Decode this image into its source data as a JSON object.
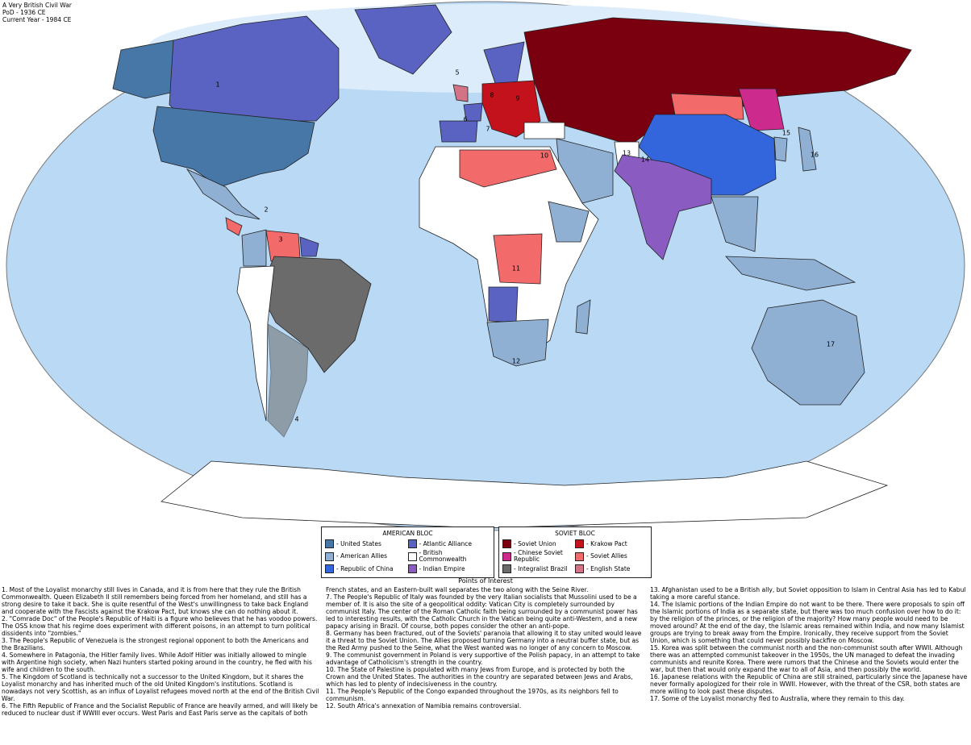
{
  "header": {
    "lines": [
      "A Very British Civil War",
      "PoD - 1936 CE",
      "Current Year - 1984 CE"
    ]
  },
  "map": {
    "labels": [
      "1",
      "2",
      "3",
      "4",
      "5",
      "6",
      "7",
      "8",
      "9",
      "10",
      "11",
      "12",
      "13",
      "14",
      "15",
      "16",
      "17"
    ]
  },
  "legend": {
    "american": {
      "title": "AMERICAN BLOC",
      "items": [
        {
          "label": "- United States",
          "color": "#4677a6"
        },
        {
          "label": "- Atlantic Alliance",
          "color": "#5a62c2"
        },
        {
          "label": "- American Allies",
          "color": "#8fb0d2"
        },
        {
          "label": "- British Commonwealth",
          "color": "#ffffff"
        },
        {
          "label": "- Republic of China",
          "color": "#3366dd"
        },
        {
          "label": "- Indian Empire",
          "color": "#8a5cc2"
        }
      ]
    },
    "soviet": {
      "title": "SOVIET BLOC",
      "items": [
        {
          "label": "- Soviet Union",
          "color": "#7a0010"
        },
        {
          "label": "- Krakow Pact",
          "color": "#c4121c"
        },
        {
          "label": "- Chinese Soviet Republic",
          "color": "#cc2a8c"
        },
        {
          "label": "- Soviet Allies",
          "color": "#f26a6a"
        },
        {
          "label": "- Integralist Brazil",
          "color": "#6b6b6b"
        },
        {
          "label": "- English State",
          "color": "#d27486"
        }
      ]
    }
  },
  "notes": {
    "title": "Points of Interest",
    "items": [
      "1. Most of the Loyalist monarchy still lives in Canada, and it is from here that they rule the British Commonwealth. Queen Elizabeth II still remembers being forced from her homeland, and still has a strong desire to take it back. She is quite resentful of the West's unwillingness to take back England and cooperate with the Fascists against the Krakow Pact, but knows she can do nothing about it.",
      "2. \"Comrade Doc\" of the People's Republic of Haiti is a figure who believes that he has voodoo powers. The OSS know that his regime does experiment with different poisons, in an attempt to turn political dissidents into \"zombies.\"",
      "3. The People's Republic of Venezuela is the strongest regional opponent to both the Americans and the Brazilians.",
      "4. Somewhere in Patagonia, the Hitler family lives. While Adolf Hitler was initially allowed to mingle with Argentine high society, when Nazi hunters started poking around in the country, he fled with his wife and children to the south.",
      "5. The Kingdom of Scotland is technically not a successor to the United Kingdom, but it shares the Loyalist monarchy and has inherited much of the old United Kingdom's institutions. Scotland is nowadays not very Scottish, as an influx of Loyalist refugees moved north at the end of the British Civil War.",
      "6. The Fifth Republic of France and the Socialist Republic of France are heavily armed, and will likely be reduced to nuclear dust if WWIII ever occurs. West Paris and East Paris serve as the capitals of both French states, and an Eastern-built wall separates the two along with the Seine River.",
      "7. The People's Republic of Italy was founded by the very Italian socialists that Mussolini used to be a member of. It is also the site of a geopolitical oddity: Vatican City is completely surrounded by communist Italy. The center of the Roman Catholic faith being surrounded by a communist power has led to interesting results, with the Catholic Church in the Vatican being quite anti-Western, and a new papacy arising in Brazil. Of course, both popes consider the other an anti-pope.",
      "8. Germany has been fractured, out of the Soviets' paranoia that allowing it to stay united would leave it a threat to the Soviet Union. The Allies proposed turning Germany into a neutral buffer state, but as the Red Army pushed to the Seine, what the West wanted was no longer of any concern to Moscow.",
      "9. The communist government in Poland is very supportive of the Polish papacy, in an attempt to take advantage of Catholicism's strength in the country.",
      "10. The State of Palestine is populated with many Jews from Europe, and is protected by both the Crown and the United States. The authorities in the country are separated between Jews and Arabs, which has led to plenty of indecisiveness in the country.",
      "11. The People's Republic of the Congo expanded throughout the 1970s, as its neighbors fell to communism.",
      "12. South Africa's annexation of Namibia remains controversial.",
      "13. Afghanistan used to be a British ally, but Soviet opposition to Islam in Central Asia has led to Kabul taking a more careful stance.",
      "14. The Islamic portions of the Indian Empire do not want to be there. There were proposals to spin off the Islamic portions of India as a separate state, but there was too much confusion over how to do it: by the religion of the princes, or the religion of the majority? How many people would need to be moved around? At the end of the day, the Islamic areas remained within India, and now many Islamist groups are trying to break away from the Empire. Ironically, they receive support from the Soviet Union, which is something that could never possibly backfire on Moscow.",
      "15. Korea was split between the communist north and the non-communist south after WWII. Although there was an attempted communist takeover in the 1950s, the UN managed to defeat the invading communists and reunite Korea. There were rumors that the Chinese and the Soviets would enter the war, but then that would only expand the war to all of Asia, and then possibly the world.",
      "16. Japanese relations with the Republic of China are still strained, particularly since the Japanese have never formally apologized for their role in WWII. However, with the threat of the CSR, both states are more willing to look past these disputes.",
      "17. Some of the Loyalist monarchy fled to Australia, where they remain to this day."
    ]
  }
}
